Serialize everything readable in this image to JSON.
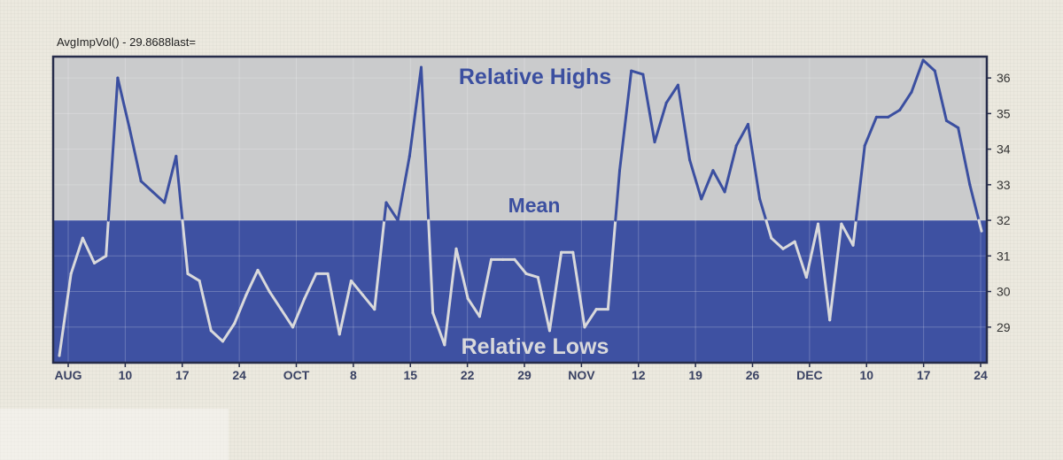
{
  "indicator_label": "AvgImpVol() - 29.8688last=",
  "chart_data": {
    "type": "line",
    "title": "",
    "xlabel": "",
    "ylabel": "",
    "ylim": [
      28,
      36.6
    ],
    "mean": 32,
    "grid": true,
    "y_ticks": [
      29,
      30,
      31,
      32,
      33,
      34,
      35,
      36
    ],
    "x_tick_labels": [
      "AUG",
      "10",
      "17",
      "24",
      "OCT",
      "8",
      "15",
      "22",
      "29",
      "NOV",
      "12",
      "19",
      "26",
      "DEC",
      "10",
      "17",
      "24"
    ],
    "zones": {
      "above_mean": "Relative Highs",
      "mean": "Mean",
      "below_mean": "Relative Lows"
    },
    "colors": {
      "upper_zone": "#cacbcc",
      "lower_zone": "#3e51a2",
      "line_above": "#3b4fa0",
      "line_below": "#d9d9db",
      "frame": "#262c4a"
    },
    "series": [
      {
        "values": [
          28.2,
          30.5,
          31.5,
          30.8,
          31,
          36,
          34.6,
          33.1,
          32.8,
          32.5,
          33.8,
          30.5,
          30.3,
          28.9,
          28.6,
          29.1,
          29.9,
          30.6,
          30,
          29.5,
          29,
          29.8,
          30.5,
          30.5,
          28.8,
          30.3,
          29.9,
          29.5,
          32.5,
          32,
          33.8,
          36.3,
          29.4,
          28.5,
          31.2,
          29.8,
          29.3,
          30.9,
          30.9,
          30.9,
          30.5,
          30.4,
          28.9,
          31.1,
          31.1,
          29,
          29.5,
          29.5,
          33.4,
          36.2,
          36.1,
          34.2,
          35.3,
          35.8,
          33.7,
          32.6,
          33.4,
          32.8,
          34.1,
          34.7,
          32.6,
          31.5,
          31.2,
          31.4,
          30.4,
          31.9,
          29.2,
          31.9,
          31.3,
          34.1,
          34.9,
          34.9,
          35.1,
          35.6,
          36.5,
          36.2,
          34.8,
          34.6,
          33,
          31.7
        ]
      }
    ]
  }
}
